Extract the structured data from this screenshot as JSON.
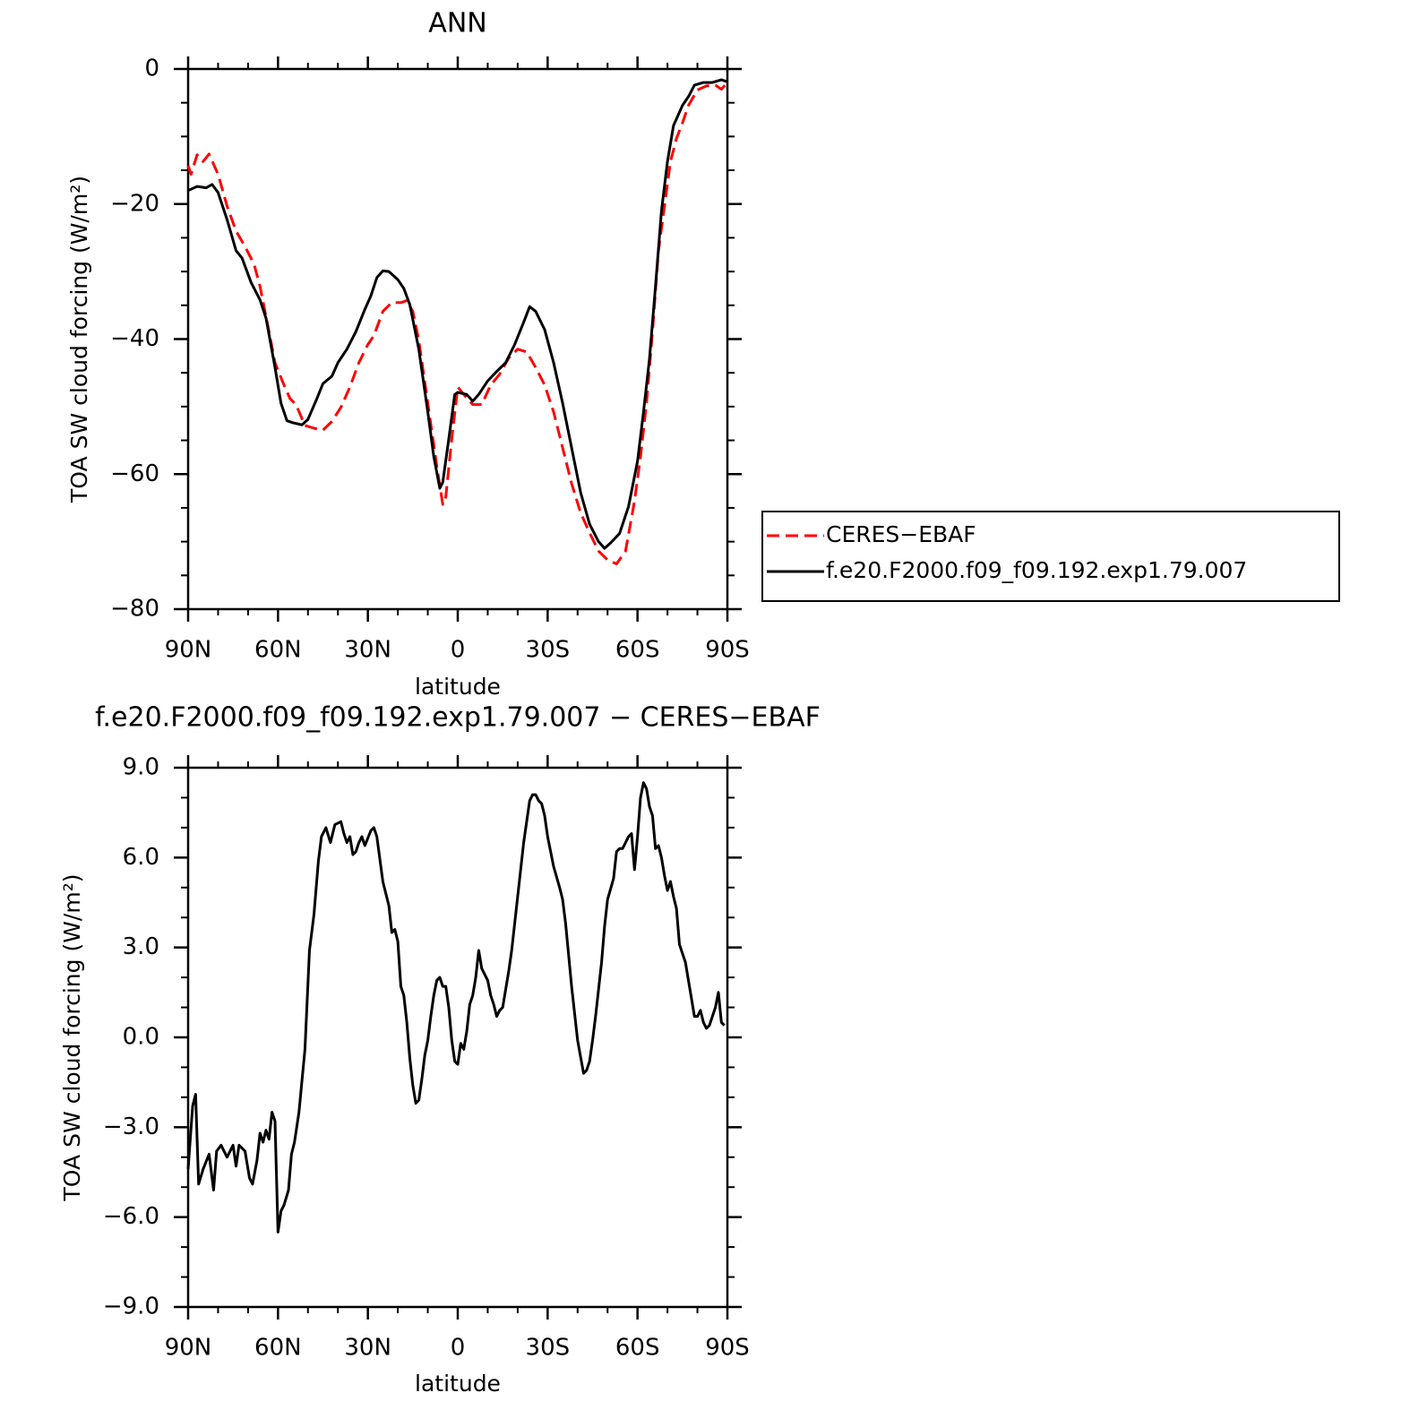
{
  "chart_data": [
    {
      "type": "line",
      "title": "ANN",
      "x_label": "latitude",
      "y_label": "TOA SW cloud forcing (W/m²)",
      "xlim": [
        90,
        -90
      ],
      "xticks": [
        {
          "value": 90,
          "label": "90N"
        },
        {
          "value": 60,
          "label": "60N"
        },
        {
          "value": 30,
          "label": "30N"
        },
        0,
        {
          "value": -30,
          "label": "30S"
        },
        {
          "value": -60,
          "label": "60S"
        },
        {
          "value": -90,
          "label": "90S"
        }
      ],
      "minor_xticks": [
        80,
        70,
        50,
        40,
        20,
        10,
        -10,
        -20,
        -40,
        -50,
        -70,
        -80
      ],
      "ylim": [
        -80,
        0
      ],
      "yticks": [
        0,
        {
          "value": -20,
          "label": "−20"
        },
        {
          "value": -40,
          "label": "−40"
        },
        {
          "value": -60,
          "label": "−60"
        },
        {
          "value": -80,
          "label": "−80"
        }
      ],
      "minor_yticks": [
        -5,
        -10,
        -15,
        -25,
        -30,
        -35,
        -45,
        -50,
        -55,
        -65,
        -70,
        -75
      ],
      "legend": "right",
      "series": [
        {
          "name": "CERES−EBAF",
          "color": "#ff0000",
          "line_style": "dashed",
          "x": [
            90,
            89,
            87,
            85,
            83,
            80,
            77,
            74,
            71,
            68,
            66,
            63,
            61,
            58,
            56,
            54,
            51,
            48,
            45,
            42,
            39,
            36,
            33,
            30,
            28,
            25,
            22,
            19,
            17,
            15,
            13,
            10,
            7,
            5,
            4,
            2,
            0,
            -2,
            -5,
            -8,
            -11,
            -14,
            -17,
            -20,
            -23,
            -26,
            -29,
            -32,
            -35,
            -38,
            -41,
            -44,
            -47,
            -50,
            -53,
            -56,
            -59,
            -61,
            -63,
            -65,
            -67,
            -69,
            -71,
            -73,
            -75,
            -77,
            -80,
            -83,
            -86,
            -88,
            -90
          ],
          "values": [
            -14.3,
            -15.6,
            -12.7,
            -13.7,
            -12.6,
            -15.6,
            -20.3,
            -24,
            -26.3,
            -28.9,
            -32.2,
            -38.9,
            -43.5,
            -46.8,
            -48.8,
            -49.7,
            -52.8,
            -53.2,
            -53.5,
            -52.2,
            -50.1,
            -47.1,
            -43.5,
            -40.8,
            -39.5,
            -35.9,
            -34.6,
            -34.6,
            -34.3,
            -35.9,
            -40.2,
            -49.5,
            -58.8,
            -64.5,
            -63.4,
            -54.8,
            -47.1,
            -48.2,
            -49.7,
            -49.7,
            -46.8,
            -45.2,
            -42.8,
            -41.5,
            -41.9,
            -44.2,
            -46.8,
            -50.8,
            -56.1,
            -61.4,
            -65.7,
            -68.7,
            -71.4,
            -72.7,
            -73.3,
            -71.4,
            -64,
            -57.4,
            -49.5,
            -38.9,
            -26.9,
            -20.3,
            -13.7,
            -10.3,
            -8,
            -5.4,
            -3.1,
            -2.5,
            -2.4,
            -3,
            -2
          ]
        },
        {
          "name": "f.e20.F2000.f09_f09.192.exp1.79.007",
          "color": "#000000",
          "line_style": "solid",
          "x": [
            90,
            87,
            84,
            82,
            80,
            77,
            74,
            72,
            69,
            66,
            64,
            61,
            59,
            57,
            55,
            52,
            50,
            47,
            45,
            42,
            40,
            37,
            34,
            31,
            29,
            27,
            25,
            23,
            20,
            18,
            16,
            13,
            10,
            8,
            6,
            5,
            3,
            1,
            0,
            -3,
            -5,
            -7,
            -10,
            -13,
            -16,
            -19,
            -22,
            -24,
            -26,
            -29,
            -32,
            -35,
            -38,
            -41,
            -44,
            -47,
            -49,
            -51,
            -54,
            -57,
            -60,
            -62,
            -64,
            -66,
            -68,
            -70,
            -72,
            -75,
            -77,
            -79,
            -82,
            -85,
            -88,
            -90
          ],
          "values": [
            -18,
            -17.4,
            -17.6,
            -17.1,
            -18.3,
            -22.3,
            -26.9,
            -28,
            -31.6,
            -34.2,
            -36.9,
            -44.2,
            -49.5,
            -52.1,
            -52.4,
            -52.7,
            -51.9,
            -48.8,
            -46.6,
            -45.5,
            -43.5,
            -41.5,
            -38.9,
            -35.6,
            -33.6,
            -30.9,
            -29.9,
            -30,
            -31.2,
            -32.5,
            -34.9,
            -41.5,
            -50.8,
            -57.4,
            -62.1,
            -61.2,
            -54.8,
            -48.2,
            -47.9,
            -48.2,
            -49.2,
            -48.2,
            -46.2,
            -44.8,
            -43.5,
            -40.8,
            -37.5,
            -35.2,
            -35.9,
            -38.6,
            -43.5,
            -49.5,
            -56.1,
            -62.7,
            -67.4,
            -70,
            -71,
            -70.2,
            -68.8,
            -64.8,
            -58.1,
            -50.8,
            -42.9,
            -32.2,
            -21,
            -13.7,
            -8.4,
            -5.4,
            -4.1,
            -2.4,
            -2,
            -2,
            -1.6,
            -1.9
          ]
        }
      ]
    },
    {
      "type": "line",
      "title": "f.e20.F2000.f09_f09.192.exp1.79.007 − CERES−EBAF",
      "x_label": "latitude",
      "y_label": "TOA SW cloud forcing (W/m²)",
      "xlim": [
        90,
        -90
      ],
      "xticks": [
        {
          "value": 90,
          "label": "90N"
        },
        {
          "value": 60,
          "label": "60N"
        },
        {
          "value": 30,
          "label": "30N"
        },
        0,
        {
          "value": -30,
          "label": "30S"
        },
        {
          "value": -60,
          "label": "60S"
        },
        {
          "value": -90,
          "label": "90S"
        }
      ],
      "minor_xticks": [
        80,
        70,
        50,
        40,
        20,
        10,
        -10,
        -20,
        -40,
        -50,
        -70,
        -80
      ],
      "ylim": [
        -9,
        9
      ],
      "yticks": [
        {
          "value": 9,
          "label": "9.0"
        },
        {
          "value": 6,
          "label": "6.0"
        },
        {
          "value": 3,
          "label": "3.0"
        },
        {
          "value": 0,
          "label": "0.0"
        },
        {
          "value": -3,
          "label": "−3.0"
        },
        {
          "value": -6,
          "label": "−6.0"
        },
        {
          "value": -9,
          "label": "−9.0"
        }
      ],
      "minor_yticks": [
        8,
        7,
        5,
        4,
        2,
        1,
        -1,
        -2,
        -4,
        -5,
        -7,
        -8
      ],
      "series": [
        {
          "color": "#000000",
          "line_style": "solid",
          "x": [
            90,
            88.5,
            87.5,
            86.5,
            85,
            83,
            81.5,
            80.5,
            79,
            77,
            75,
            74,
            73,
            71,
            69.5,
            68.5,
            67,
            66,
            65,
            64,
            63,
            62,
            61,
            60,
            59,
            58,
            56.5,
            55.5,
            54.5,
            53,
            51,
            49.5,
            48,
            46.5,
            45.5,
            44,
            42.5,
            41,
            39,
            38,
            37,
            36,
            35,
            34,
            33,
            32,
            31,
            29,
            28,
            27,
            25,
            23,
            22,
            21,
            20,
            19,
            18,
            17,
            16,
            15,
            14,
            13,
            12,
            11,
            10,
            9,
            8,
            7,
            6,
            5,
            4,
            3,
            2,
            1,
            0,
            -1,
            -2,
            -3,
            -4,
            -5,
            -6,
            -7,
            -8,
            -9,
            -10,
            -11,
            -12,
            -13,
            -14,
            -15,
            -16,
            -17,
            -18,
            -20,
            -22,
            -24,
            -25,
            -26,
            -27,
            -28,
            -29,
            -30,
            -32,
            -34,
            -35,
            -36,
            -38,
            -40,
            -42,
            -43,
            -44,
            -45,
            -46,
            -48,
            -49,
            -50,
            -52,
            -53,
            -54,
            -55,
            -56,
            -57,
            -58,
            -59,
            -60,
            -61,
            -62,
            -63,
            -64,
            -65,
            -66,
            -67,
            -68,
            -69,
            -70,
            -71,
            -72,
            -73,
            -74,
            -75,
            -76,
            -77,
            -78,
            -79,
            -80,
            -81,
            -82,
            -83,
            -84,
            -85,
            -86,
            -87,
            -88,
            -89
          ],
          "values": [
            -4.4,
            -2.3,
            -1.9,
            -4.9,
            -4.4,
            -3.9,
            -5.1,
            -3.8,
            -3.6,
            -4,
            -3.6,
            -4.3,
            -3.6,
            -3.8,
            -4.7,
            -4.9,
            -4.1,
            -3.2,
            -3.5,
            -3.1,
            -3.4,
            -2.5,
            -2.8,
            -6.5,
            -5.8,
            -5.6,
            -5.1,
            -3.9,
            -3.5,
            -2.5,
            -0.4,
            2.9,
            4.1,
            5.9,
            6.7,
            7,
            6.5,
            7.1,
            7.2,
            6.8,
            6.5,
            6.7,
            6.1,
            6.2,
            6.5,
            6.7,
            6.4,
            6.9,
            7,
            6.7,
            5.2,
            4.4,
            3.5,
            3.6,
            3.2,
            1.7,
            1.4,
            0.5,
            -0.7,
            -1.6,
            -2.2,
            -2.1,
            -1.4,
            -0.6,
            -0.1,
            0.7,
            1.4,
            1.9,
            2,
            1.7,
            1.7,
            1,
            -0.1,
            -0.8,
            -0.9,
            -0.2,
            -0.4,
            0.2,
            1.1,
            1.4,
            2,
            2.9,
            2.3,
            2.1,
            1.9,
            1.4,
            1.1,
            0.7,
            0.9,
            1,
            1.6,
            2.2,
            2.9,
            4.7,
            6.5,
            7.9,
            8.1,
            8.1,
            7.9,
            7.8,
            7.4,
            6.7,
            5.7,
            5,
            4.6,
            3.8,
            1.7,
            -0.1,
            -1.2,
            -1.1,
            -0.8,
            -0.1,
            0.7,
            2.5,
            3.7,
            4.6,
            5.3,
            6.2,
            6.3,
            6.3,
            6.5,
            6.7,
            6.8,
            5.6,
            6.7,
            8,
            8.5,
            8.3,
            7.7,
            7.4,
            6.3,
            6.4,
            6,
            5.4,
            4.9,
            5.2,
            4.7,
            4.3,
            3.1,
            2.8,
            2.5,
            1.9,
            1.3,
            0.7,
            0.7,
            0.9,
            0.5,
            0.3,
            0.4,
            0.7,
            1,
            1.5,
            0.5,
            0.4
          ]
        }
      ]
    }
  ]
}
